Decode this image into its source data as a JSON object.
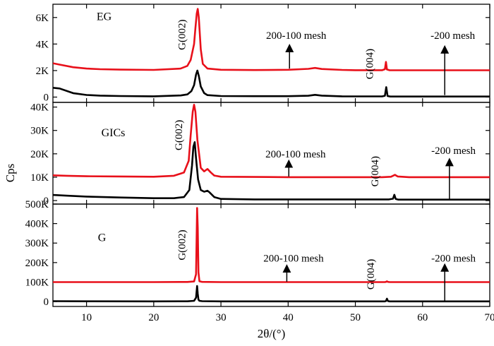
{
  "chart_data": {
    "type": "line",
    "xlabel": "2θ/(°)",
    "ylabel": "Cps",
    "xlim": [
      5,
      70
    ],
    "x_ticks": [
      10,
      20,
      30,
      40,
      50,
      60,
      70
    ],
    "x_tick_labels": [
      "10",
      "20",
      "30",
      "40",
      "50",
      "60",
      "70"
    ],
    "series_colors": {
      "-200 mesh": "#e8101a",
      "200-100 mesh": "#000000"
    },
    "panels": [
      {
        "label": "EG",
        "ylim": [
          -400,
          7000
        ],
        "y_ticks": [
          0,
          2000,
          4000,
          6000
        ],
        "y_tick_labels": [
          "0",
          "2K",
          "4K",
          "6K"
        ],
        "annotations": {
          "peak1": "G(002)",
          "peak2": "G(004)",
          "arrow_black": "200-100 mesh",
          "arrow_red": "-200 mesh"
        },
        "series": [
          {
            "name": "200-100 mesh",
            "x": [
              5,
              6,
              8,
              10,
              12,
              15,
              20,
              24,
              25,
              25.6,
              26,
              26.3,
              26.5,
              26.7,
              27,
              27.5,
              28,
              30,
              35,
              40,
              43,
              44,
              45,
              48,
              50,
              54,
              54.4,
              54.6,
              54.8,
              55.2,
              58,
              62,
              66,
              70
            ],
            "y": [
              700,
              650,
              300,
              160,
              110,
              80,
              60,
              120,
              200,
              450,
              900,
              1700,
              2000,
              1600,
              800,
              300,
              150,
              80,
              70,
              70,
              100,
              170,
              110,
              60,
              50,
              50,
              100,
              750,
              80,
              40,
              40,
              40,
              40,
              40
            ]
          },
          {
            "name": "-200 mesh",
            "x": [
              5,
              6,
              8,
              10,
              12,
              15,
              20,
              24,
              25,
              25.5,
              26,
              26.2,
              26.4,
              26.55,
              26.7,
              27,
              27.3,
              28,
              30,
              35,
              40,
              43,
              44,
              45,
              48,
              50,
              54,
              54.4,
              54.55,
              54.7,
              55.1,
              58,
              62,
              66,
              70
            ],
            "y": [
              2550,
              2450,
              2250,
              2150,
              2100,
              2070,
              2050,
              2150,
              2350,
              2800,
              4000,
              5200,
              6300,
              6650,
              6000,
              3600,
              2500,
              2150,
              2060,
              2040,
              2060,
              2130,
              2200,
              2120,
              2050,
              2030,
              2030,
              2100,
              2650,
              2080,
              2020,
              2020,
              2020,
              2020,
              2020
            ]
          }
        ]
      },
      {
        "label": "GICs",
        "ylim": [
          -1500,
          42000
        ],
        "y_ticks": [
          0,
          10000,
          20000,
          30000,
          40000
        ],
        "y_tick_labels": [
          "0",
          "10K",
          "20K",
          "30K",
          "40K"
        ],
        "annotations": {
          "peak1": "G(002)",
          "peak2": "G(004)",
          "arrow_black": "200-100 mesh",
          "arrow_red": "-200 mesh"
        },
        "series": [
          {
            "name": "200-100 mesh",
            "x": [
              5,
              7,
              10,
              15,
              20,
              23,
              24.5,
              25.3,
              25.7,
              25.9,
              26.1,
              26.3,
              26.6,
              27,
              27.5,
              28,
              28.3,
              29,
              30,
              35,
              40,
              45,
              50,
              55,
              55.6,
              55.8,
              56,
              56.4,
              60,
              65,
              70
            ],
            "y": [
              2400,
              2100,
              1700,
              1300,
              1000,
              1000,
              1500,
              4500,
              15000,
              23000,
              25000,
              18000,
              9000,
              4500,
              3800,
              4200,
              3500,
              1500,
              700,
              500,
              500,
              500,
              500,
              500,
              800,
              2500,
              700,
              400,
              400,
              400,
              400
            ]
          },
          {
            "name": "-200 mesh",
            "x": [
              5,
              7,
              10,
              15,
              20,
              23,
              24.5,
              25.2,
              25.5,
              25.8,
              26,
              26.2,
              26.5,
              27,
              27.5,
              28,
              28.5,
              29,
              30,
              35,
              40,
              45,
              50,
              54,
              55.3,
              55.6,
              55.9,
              56.3,
              58,
              60,
              65,
              70
            ],
            "y": [
              10800,
              10600,
              10400,
              10300,
              10200,
              10600,
              12000,
              17000,
              28000,
              38000,
              41000,
              38000,
              26000,
              14000,
              12500,
              13500,
              12000,
              10700,
              10200,
              10100,
              10000,
              10000,
              10000,
              10000,
              10200,
              10600,
              11000,
              10300,
              10000,
              10000,
              10000,
              10000
            ]
          }
        ]
      },
      {
        "label": "G",
        "ylim": [
          -25000,
          500000
        ],
        "y_ticks": [
          0,
          100000,
          200000,
          300000,
          400000,
          500000
        ],
        "y_tick_labels": [
          "0",
          "100K",
          "200K",
          "300K",
          "400K",
          "500K"
        ],
        "annotations": {
          "peak1": "G(002)",
          "peak2": "G(004)",
          "arrow_black": "200-100 mesh",
          "arrow_red": "-200 mesh"
        },
        "series": [
          {
            "name": "200-100 mesh",
            "x": [
              5,
              10,
              20,
              25,
              26,
              26.3,
              26.45,
              26.55,
              26.65,
              26.8,
              27.2,
              30,
              40,
              50,
              54.4,
              54.55,
              54.7,
              54.85,
              55.1,
              60,
              70
            ],
            "y": [
              2000,
              1500,
              1000,
              1500,
              4000,
              20000,
              80000,
              40000,
              10000,
              4000,
              2000,
              1000,
              1000,
              1000,
              1000,
              3000,
              15000,
              3000,
              1000,
              1000,
              1000
            ]
          },
          {
            "name": "-200 mesh",
            "x": [
              5,
              10,
              20,
              25,
              26,
              26.3,
              26.45,
              26.55,
              26.65,
              26.8,
              27.2,
              30,
              40,
              50,
              54.4,
              54.55,
              54.7,
              54.85,
              55.1,
              60,
              70
            ],
            "y": [
              100000,
              100000,
              100000,
              100500,
              103000,
              140000,
              480000,
              380000,
              150000,
              104000,
              101000,
              100000,
              100000,
              100000,
              100000,
              101000,
              104000,
              101000,
              100000,
              100000,
              100000
            ]
          }
        ]
      }
    ]
  }
}
